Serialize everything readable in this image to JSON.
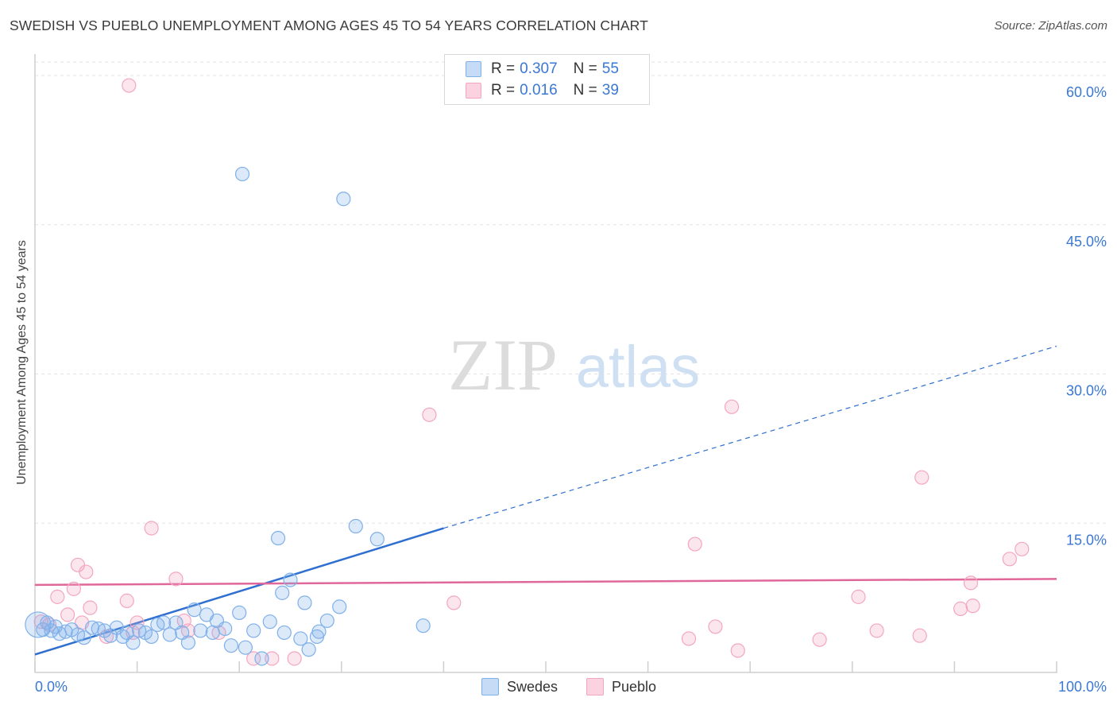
{
  "title": "SWEDISH VS PUEBLO UNEMPLOYMENT AMONG AGES 45 TO 54 YEARS CORRELATION CHART",
  "source": "Source: ZipAtlas.com",
  "watermark": {
    "zip": "ZIP",
    "atlas": "atlas"
  },
  "legend": {
    "rows": [
      {
        "r_label": "R =",
        "r_value": "0.307",
        "n_label": "N =",
        "n_value": "55",
        "color": "#7fb0ea"
      },
      {
        "r_label": "R =",
        "r_value": "0.016",
        "n_label": "N =",
        "n_value": "39",
        "color": "#f3a6c0"
      }
    ]
  },
  "chart_data": {
    "type": "scatter",
    "title": "SWEDISH VS PUEBLO UNEMPLOYMENT AMONG AGES 45 TO 54 YEARS CORRELATION CHART",
    "xlabel": "",
    "ylabel": "Unemployment Among Ages 45 to 54 years",
    "xlim": [
      0,
      100
    ],
    "ylim": [
      0,
      62
    ],
    "x_tick_labels": [
      "0.0%",
      "100.0%"
    ],
    "y_ticks": [
      15,
      30,
      45,
      60
    ],
    "y_tick_labels": [
      "15.0%",
      "30.0%",
      "45.0%",
      "60.0%"
    ],
    "grid": true,
    "legend_position": "bottom",
    "series": [
      {
        "name": "Swedes",
        "color": "#7fb0ea",
        "line_color": "#2f6fd0",
        "r": 0.307,
        "n": 55,
        "trend": {
          "x0": 0,
          "y0": 1.8,
          "x1": 40,
          "y1": 14.5,
          "dash_to_x": 100,
          "dash_to_y": 32.8
        },
        "points": [
          [
            0.3,
            4.8
          ],
          [
            0.8,
            4.3
          ],
          [
            1.2,
            5.0
          ],
          [
            1.6,
            4.2
          ],
          [
            2.0,
            4.6
          ],
          [
            2.4,
            3.9
          ],
          [
            3.0,
            4.1
          ],
          [
            3.6,
            4.3
          ],
          [
            4.2,
            3.8
          ],
          [
            4.8,
            3.5
          ],
          [
            5.6,
            4.5
          ],
          [
            6.2,
            4.4
          ],
          [
            6.8,
            4.2
          ],
          [
            7.4,
            3.7
          ],
          [
            8.0,
            4.5
          ],
          [
            8.6,
            3.6
          ],
          [
            9.0,
            4.0
          ],
          [
            9.6,
            3.0
          ],
          [
            10.2,
            4.2
          ],
          [
            10.8,
            4.0
          ],
          [
            11.4,
            3.6
          ],
          [
            12.0,
            4.8
          ],
          [
            12.6,
            5.0
          ],
          [
            13.2,
            3.8
          ],
          [
            13.8,
            5.0
          ],
          [
            14.4,
            4.0
          ],
          [
            15.0,
            3.0
          ],
          [
            15.6,
            6.3
          ],
          [
            16.2,
            4.2
          ],
          [
            16.8,
            5.8
          ],
          [
            17.4,
            4.0
          ],
          [
            17.8,
            5.2
          ],
          [
            18.6,
            4.4
          ],
          [
            19.2,
            2.7
          ],
          [
            20.0,
            6.0
          ],
          [
            20.6,
            2.5
          ],
          [
            21.4,
            4.2
          ],
          [
            22.2,
            1.4
          ],
          [
            23.0,
            5.1
          ],
          [
            23.8,
            13.5
          ],
          [
            24.4,
            4.0
          ],
          [
            25.0,
            9.3
          ],
          [
            26.0,
            3.4
          ],
          [
            26.4,
            7.0
          ],
          [
            26.8,
            2.3
          ],
          [
            27.6,
            3.6
          ],
          [
            24.2,
            8.0
          ],
          [
            28.6,
            5.2
          ],
          [
            29.8,
            6.6
          ],
          [
            30.2,
            47.6
          ],
          [
            31.4,
            14.7
          ],
          [
            33.5,
            13.4
          ],
          [
            38.0,
            4.7
          ],
          [
            20.3,
            50.1
          ],
          [
            27.8,
            4.1
          ]
        ]
      },
      {
        "name": "Pueblo",
        "color": "#f3a6c0",
        "line_color": "#e0679a",
        "r": 0.016,
        "n": 39,
        "trend": {
          "x0": 0,
          "y0": 8.8,
          "x1": 100,
          "y1": 9.4
        },
        "points": [
          [
            0.6,
            5.1
          ],
          [
            1.4,
            4.8
          ],
          [
            2.2,
            7.6
          ],
          [
            3.2,
            5.8
          ],
          [
            3.8,
            8.4
          ],
          [
            4.2,
            10.8
          ],
          [
            4.6,
            5.0
          ],
          [
            5.0,
            10.1
          ],
          [
            5.4,
            6.5
          ],
          [
            7.0,
            3.6
          ],
          [
            9.0,
            7.2
          ],
          [
            9.6,
            4.0
          ],
          [
            10.0,
            5.0
          ],
          [
            11.4,
            14.5
          ],
          [
            9.2,
            59.0
          ],
          [
            13.8,
            9.4
          ],
          [
            14.6,
            5.2
          ],
          [
            15.0,
            4.2
          ],
          [
            18.0,
            4.0
          ],
          [
            21.4,
            1.4
          ],
          [
            23.2,
            1.4
          ],
          [
            25.4,
            1.4
          ],
          [
            38.6,
            25.9
          ],
          [
            41.0,
            7.0
          ],
          [
            64.0,
            3.4
          ],
          [
            64.6,
            12.9
          ],
          [
            66.6,
            4.6
          ],
          [
            68.2,
            26.7
          ],
          [
            68.8,
            2.2
          ],
          [
            76.8,
            3.3
          ],
          [
            80.6,
            7.6
          ],
          [
            82.4,
            4.2
          ],
          [
            86.6,
            3.7
          ],
          [
            86.8,
            19.6
          ],
          [
            90.6,
            6.4
          ],
          [
            91.6,
            9.0
          ],
          [
            91.8,
            6.7
          ],
          [
            95.4,
            11.4
          ],
          [
            96.6,
            12.4
          ]
        ]
      }
    ]
  },
  "bottom_legend": {
    "items": [
      {
        "label": "Swedes",
        "color": "#7fb0ea"
      },
      {
        "label": "Pueblo",
        "color": "#f3a6c0"
      }
    ]
  }
}
